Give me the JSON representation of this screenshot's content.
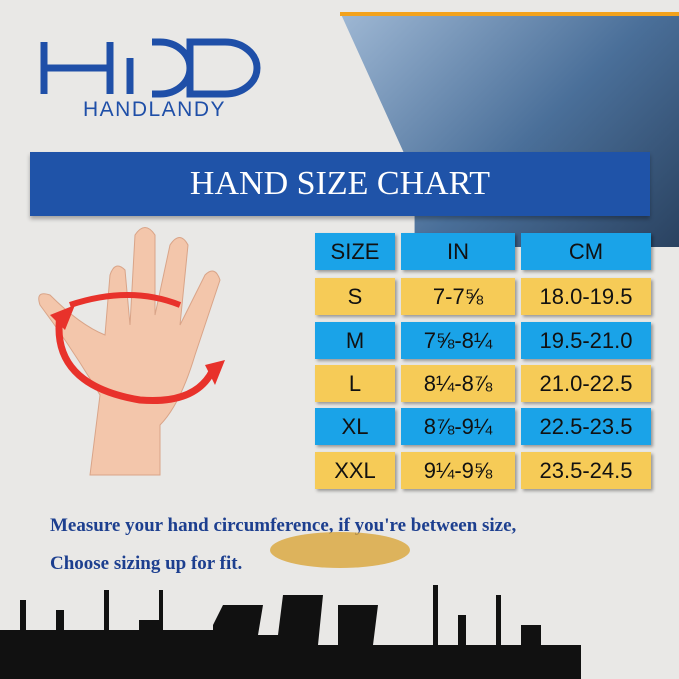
{
  "brand": {
    "logo_letters": "HD",
    "name": "HANDLANDY",
    "color": "#1f4fa8"
  },
  "banner": {
    "title": "HAND SIZE CHART",
    "color": "#1f53a8"
  },
  "table": {
    "headers": [
      "SIZE",
      "IN",
      "CM"
    ],
    "rows": [
      [
        "S",
        "7-7⅝",
        "18.0-19.5"
      ],
      [
        "M",
        "7⅝-8¼",
        "19.5-21.0"
      ],
      [
        "L",
        "8¼-8⅞",
        "21.0-22.5"
      ],
      [
        "XL",
        "8⅞-9¼",
        "22.5-23.5"
      ],
      [
        "XXL",
        "9¼-9⅝",
        "23.5-24.5"
      ]
    ],
    "colors": {
      "blue": "#1aa3e8",
      "yellow": "#f6cb57"
    }
  },
  "notes": [
    "Measure your hand circumference, if you're between size,",
    "Choose sizing up for fit."
  ]
}
